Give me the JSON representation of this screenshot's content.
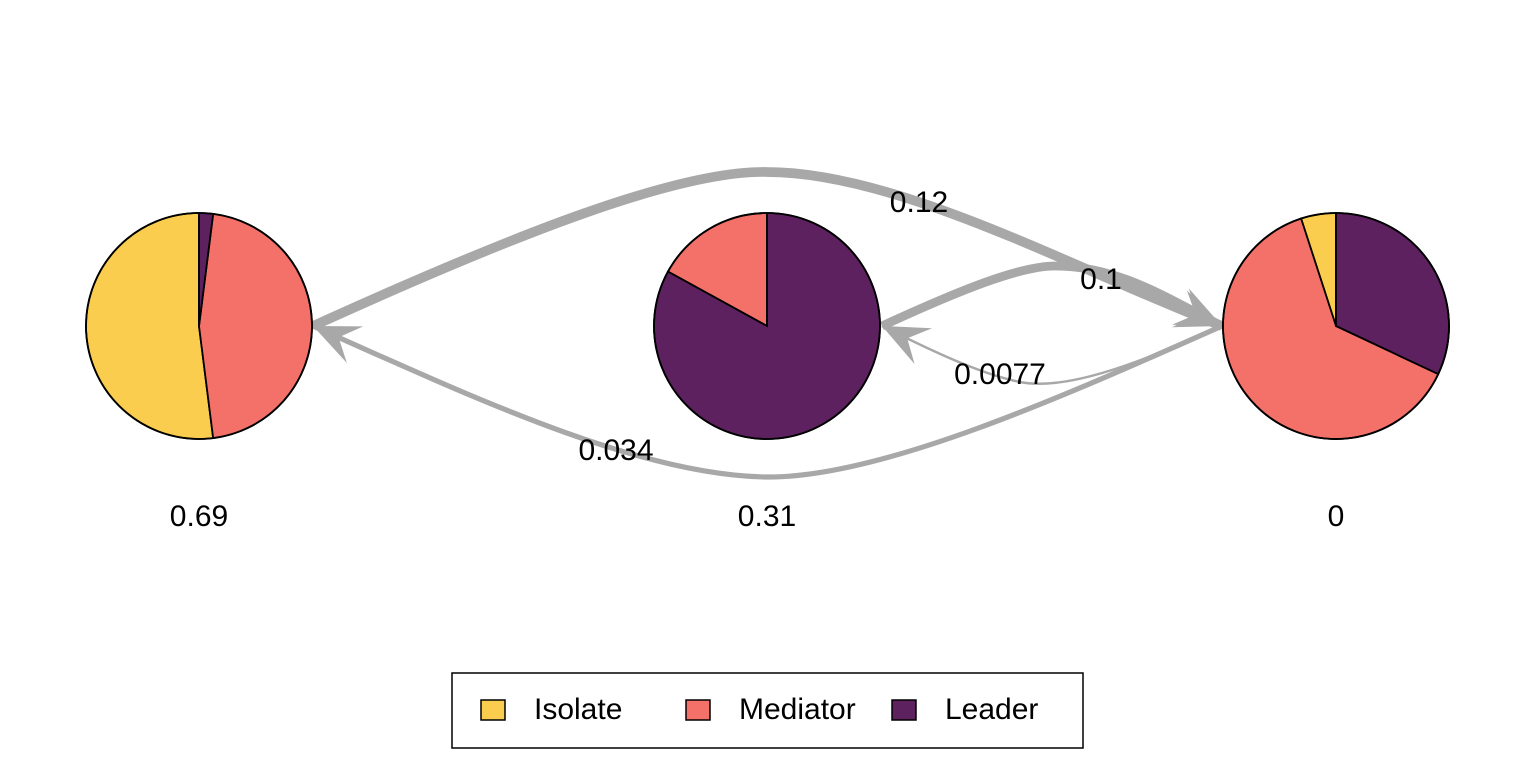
{
  "diagram": {
    "type": "state-transition-pie-network",
    "states": [
      {
        "id": "s1",
        "label": "0.69",
        "composition": [
          0.52,
          0.46,
          0.02
        ]
      },
      {
        "id": "s2",
        "label": "0.31",
        "composition": [
          0.0,
          0.17,
          0.83
        ]
      },
      {
        "id": "s3",
        "label": "0",
        "composition": [
          0.05,
          0.63,
          0.32
        ]
      }
    ],
    "categories": [
      {
        "name": "Isolate",
        "color": "#FBCD4E"
      },
      {
        "name": "Mediator",
        "color": "#F4716A"
      },
      {
        "name": "Leader",
        "color": "#5C215E"
      }
    ],
    "transitions": [
      {
        "from": "s1",
        "to": "s3",
        "label": "0.12",
        "weight": 0.12
      },
      {
        "from": "s2",
        "to": "s3",
        "label": "0.1",
        "weight": 0.1
      },
      {
        "from": "s3",
        "to": "s2",
        "label": "0.0077",
        "weight": 0.0077
      },
      {
        "from": "s3",
        "to": "s1",
        "label": "0.034",
        "weight": 0.034
      }
    ],
    "edge_color": "#A8A8A8"
  },
  "legend": {
    "items": [
      {
        "name": "Isolate"
      },
      {
        "name": "Mediator"
      },
      {
        "name": "Leader"
      }
    ]
  }
}
